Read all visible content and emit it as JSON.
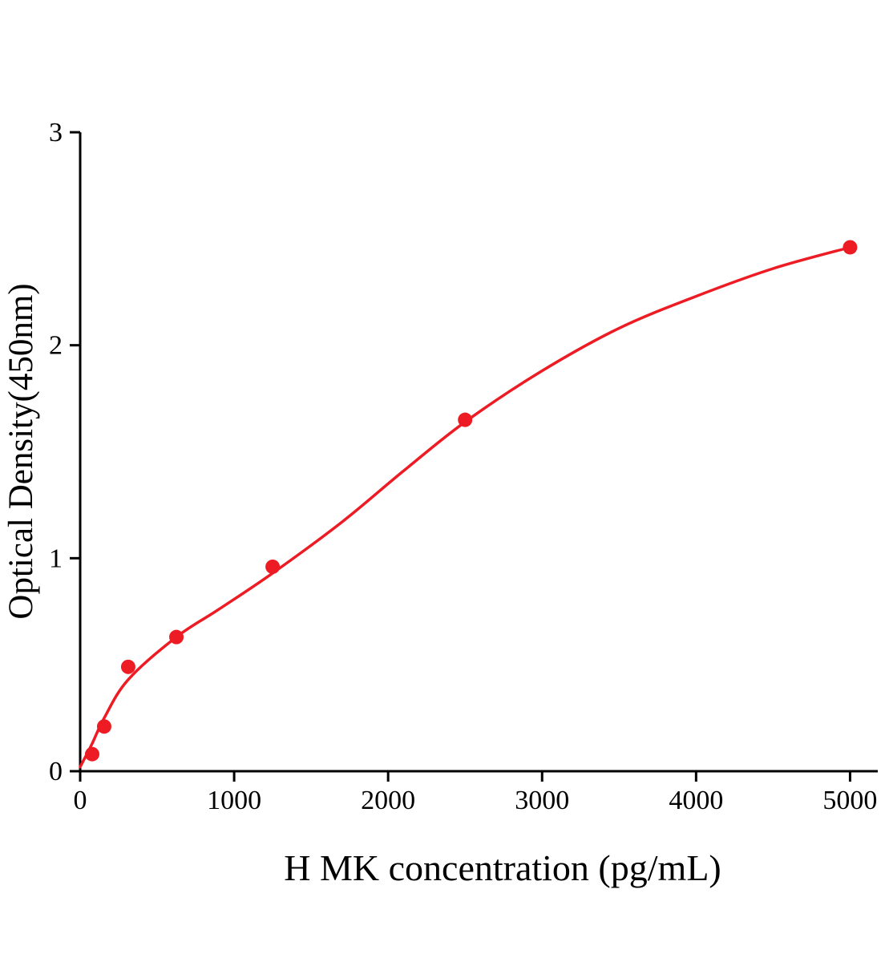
{
  "chart_data": {
    "type": "scatter",
    "title": "",
    "xlabel": "H MK concentration (pg/mL)",
    "ylabel": "Optical Density(450nm)",
    "xlim": [
      0,
      5180
    ],
    "ylim": [
      0,
      3
    ],
    "x_ticks": [
      0,
      1000,
      2000,
      3000,
      4000,
      5000
    ],
    "y_ticks": [
      0,
      1,
      2,
      3
    ],
    "grid": false,
    "legend": false,
    "point_color": "#ed1c24",
    "curve_color": "#ed1c24",
    "axis_color": "#000000",
    "points": [
      {
        "x": 78,
        "y": 0.08
      },
      {
        "x": 156,
        "y": 0.21
      },
      {
        "x": 312,
        "y": 0.49
      },
      {
        "x": 625,
        "y": 0.63
      },
      {
        "x": 1250,
        "y": 0.96
      },
      {
        "x": 2500,
        "y": 1.65
      },
      {
        "x": 5000,
        "y": 2.46
      }
    ],
    "curve": [
      [
        0,
        0.02
      ],
      [
        78,
        0.13
      ],
      [
        156,
        0.25
      ],
      [
        312,
        0.43
      ],
      [
        625,
        0.63
      ],
      [
        900,
        0.76
      ],
      [
        1250,
        0.93
      ],
      [
        1700,
        1.17
      ],
      [
        2100,
        1.41
      ],
      [
        2500,
        1.64
      ],
      [
        3000,
        1.88
      ],
      [
        3500,
        2.08
      ],
      [
        4000,
        2.23
      ],
      [
        4500,
        2.36
      ],
      [
        5000,
        2.46
      ]
    ]
  }
}
